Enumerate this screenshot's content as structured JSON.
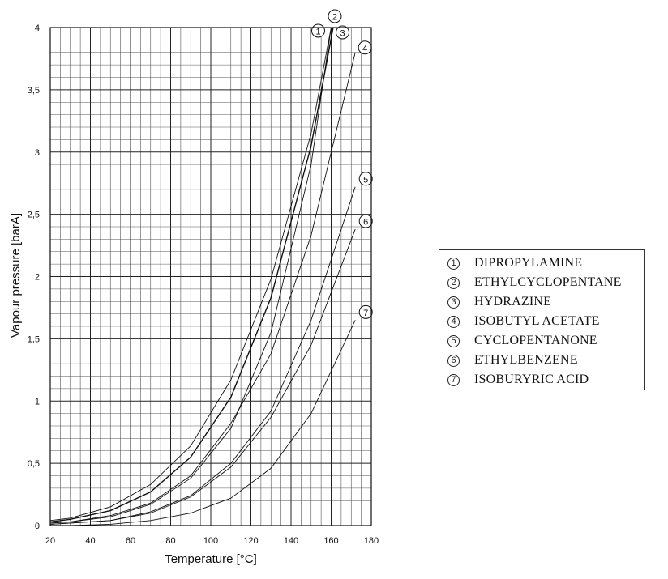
{
  "chart_data": {
    "type": "line",
    "xlabel": "Temperature [°C]",
    "ylabel": "Vapour pressure [barA]",
    "xlim": [
      20,
      180
    ],
    "ylim": [
      0,
      4
    ],
    "x_ticks": [
      "20",
      "40",
      "60",
      "80",
      "100",
      "120",
      "140",
      "160",
      "180"
    ],
    "y_ticks": [
      "0",
      "0,5",
      "1",
      "1,5",
      "2",
      "2,5",
      "3",
      "3,5",
      "4"
    ],
    "grid": true,
    "legend_position": "right",
    "series": [
      {
        "marker": "①",
        "name": "DIPROPYLAMINE",
        "x": [
          20,
          30,
          50,
          70,
          90,
          110,
          130,
          150,
          160
        ],
        "y": [
          0.04,
          0.06,
          0.15,
          0.33,
          0.64,
          1.17,
          1.98,
          3.15,
          4.0
        ]
      },
      {
        "marker": "②",
        "name": "ETHYLCYCLOPENTANE",
        "x": [
          20,
          30,
          50,
          70,
          90,
          110,
          130,
          150,
          161
        ],
        "y": [
          0.03,
          0.05,
          0.12,
          0.27,
          0.55,
          1.03,
          1.83,
          3.05,
          4.0
        ]
      },
      {
        "marker": "③",
        "name": "HYDRAZINE",
        "x": [
          20,
          30,
          50,
          70,
          90,
          110,
          130,
          150,
          160
        ],
        "y": [
          0.02,
          0.03,
          0.07,
          0.17,
          0.38,
          0.78,
          1.55,
          2.9,
          4.0
        ]
      },
      {
        "marker": "④",
        "name": "ISOBUTYL ACETATE",
        "x": [
          20,
          30,
          50,
          70,
          90,
          110,
          130,
          150,
          172
        ],
        "y": [
          0.02,
          0.03,
          0.08,
          0.18,
          0.4,
          0.82,
          1.38,
          2.33,
          3.8
        ]
      },
      {
        "marker": "⑤",
        "name": "CYCLOPENTANONE",
        "x": [
          20,
          30,
          50,
          70,
          90,
          110,
          130,
          150,
          172
        ],
        "y": [
          0.01,
          0.02,
          0.04,
          0.11,
          0.24,
          0.5,
          0.92,
          1.65,
          2.72
        ]
      },
      {
        "marker": "⑥",
        "name": "ETHYLBENZENE",
        "x": [
          20,
          30,
          50,
          70,
          90,
          110,
          130,
          150,
          172
        ],
        "y": [
          0.01,
          0.02,
          0.04,
          0.1,
          0.23,
          0.47,
          0.87,
          1.45,
          2.38
        ]
      },
      {
        "marker": "⑦",
        "name": "ISOBURYRIC ACID",
        "x": [
          20,
          30,
          50,
          70,
          90,
          110,
          130,
          150,
          172
        ],
        "y": [
          0.0,
          0.0,
          0.01,
          0.04,
          0.1,
          0.22,
          0.46,
          0.9,
          1.65
        ]
      }
    ]
  }
}
